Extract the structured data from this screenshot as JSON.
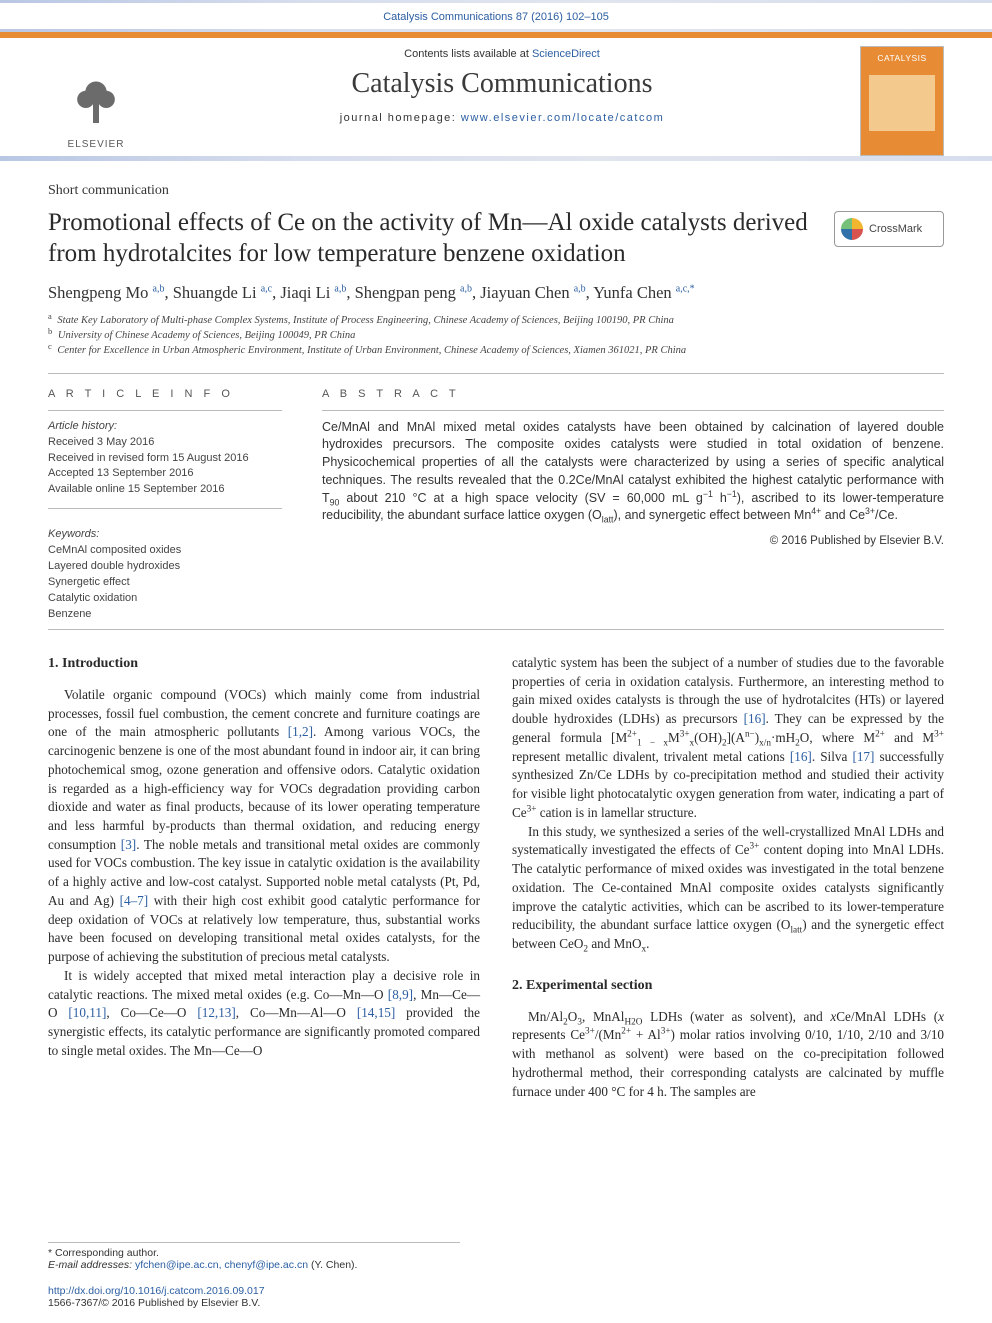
{
  "header_meta": "Catalysis Communications 87 (2016) 102–105",
  "masthead": {
    "contents_prefix": "Contents lists available at ",
    "contents_link": "ScienceDirect",
    "journal_title": "Catalysis Communications",
    "homepage_prefix": "journal homepage: ",
    "homepage_link": "www.elsevier.com/locate/catcom",
    "publisher": "ELSEVIER",
    "cover_label": "CATALYSIS"
  },
  "crossmark_label": "CrossMark",
  "article": {
    "type_label": "Short communication",
    "title": "Promotional effects of Ce on the activity of Mn—Al oxide catalysts derived from hydrotalcites for low temperature benzene oxidation",
    "authors_html": "Shengpeng Mo <sup>a,b</sup>, Shuangde Li <sup>a,c</sup>, Jiaqi Li <sup>a,b</sup>, Shengpan peng <sup>a,b</sup>, Jiayuan Chen <sup>a,b</sup>, Yunfa Chen <sup>a,c,*</sup>",
    "affiliations": [
      {
        "sup": "a",
        "text": "State Key Laboratory of Multi-phase Complex Systems, Institute of Process Engineering, Chinese Academy of Sciences, Beijing 100190, PR China"
      },
      {
        "sup": "b",
        "text": "University of Chinese Academy of Sciences, Beijing 100049, PR China"
      },
      {
        "sup": "c",
        "text": "Center for Excellence in Urban Atmospheric Environment, Institute of Urban Environment, Chinese Academy of Sciences, Xiamen 361021, PR China"
      }
    ]
  },
  "info": {
    "left_head": "A R T I C L E   I N F O",
    "right_head": "A B S T R A C T",
    "history_label": "Article history:",
    "history": [
      "Received 3 May 2016",
      "Received in revised form 15 August 2016",
      "Accepted 13 September 2016",
      "Available online 15 September 2016"
    ],
    "keywords_label": "Keywords:",
    "keywords": [
      "CeMnAl composited oxides",
      "Layered double hydroxides",
      "Synergetic effect",
      "Catalytic oxidation",
      "Benzene"
    ],
    "abstract_html": "Ce/MnAl and MnAl mixed metal oxides catalysts have been obtained by calcination of layered double hydroxides precursors. The composite oxides catalysts were studied in total oxidation of benzene. Physicochemical properties of all the catalysts were characterized by using a series of specific analytical techniques. The results revealed that the 0.2Ce/MnAl catalyst exhibited the highest catalytic performance with T<sub>90</sub> about 210 °C at a high space velocity (SV = 60,000 mL g<sup>−1</sup> h<sup>−1</sup>), ascribed to its lower-temperature reducibility, the abundant surface lattice oxygen (O<sub>latt</sub>), and synergetic effect between Mn<sup>4+</sup> and Ce<sup>3+</sup>/Ce.",
    "copyright": "© 2016 Published by Elsevier B.V."
  },
  "body": {
    "sec1_head": "1. Introduction",
    "sec2_head": "2. Experimental section",
    "col1_p1_html": "Volatile organic compound (VOCs) which mainly come from industrial processes, fossil fuel combustion, the cement concrete and furniture coatings are one of the main atmospheric pollutants <span class='ref'>[1,2]</span>. Among various VOCs, the carcinogenic benzene is one of the most abundant found in indoor air, it can bring photochemical smog, ozone generation and offensive odors. Catalytic oxidation is regarded as a high-efficiency way for VOCs degradation providing carbon dioxide and water as final products, because of its lower operating temperature and less harmful by-products than thermal oxidation, and reducing energy consumption <span class='ref'>[3]</span>. The noble metals and transitional metal oxides are commonly used for VOCs combustion. The key issue in catalytic oxidation is the availability of a highly active and low-cost catalyst. Supported noble metal catalysts (Pt, Pd, Au and Ag) <span class='ref'>[4–7]</span> with their high cost exhibit good catalytic performance for deep oxidation of VOCs at relatively low temperature, thus, substantial works have been focused on developing transitional metal oxides catalysts, for the purpose of achieving the substitution of precious metal catalysts.",
    "col1_p2_html": "It is widely accepted that mixed metal interaction play a decisive role in catalytic reactions. The mixed metal oxides (e.g. Co—Mn—O <span class='ref'>[8,9]</span>, Mn—Ce—O <span class='ref'>[10,11]</span>, Co—Ce—O <span class='ref'>[12,13]</span>, Co—Mn—Al—O <span class='ref'>[14,15]</span> provided the synergistic effects, its catalytic performance are significantly promoted compared to single metal oxides. The Mn—Ce—O",
    "col2_p1_html": "catalytic system has been the subject of a number of studies due to the favorable properties of ceria in oxidation catalysis. Furthermore, an interesting method to gain mixed oxides catalysts is through the use of hydrotalcites (HTs) or layered double hydroxides (LDHs) as precursors <span class='ref'>[16]</span>. They can be expressed by the general formula [M<sup>2+</sup><sub>1 − x</sub>M<sup>3+</sup><sub>x</sub>(OH)<sub>2</sub>](A<sup>n−</sup>)<sub>x/n</sub>·mH<sub>2</sub>O, where M<sup>2+</sup> and M<sup>3+</sup> represent metallic divalent, trivalent metal cations <span class='ref'>[16]</span>. Silva <span class='ref'>[17]</span> successfully synthesized Zn/Ce LDHs by co-precipitation method and studied their activity for visible light photocatalytic oxygen generation from water, indicating a part of Ce<sup>3+</sup> cation is in lamellar structure.",
    "col2_p2_html": "In this study, we synthesized a series of the well-crystallized MnAl LDHs and systematically investigated the effects of Ce<sup>3+</sup> content doping into MnAl LDHs. The catalytic performance of mixed oxides was investigated in the total benzene oxidation. The Ce-contained MnAl composite oxides catalysts significantly improve the catalytic activities, which can be ascribed to its lower-temperature reducibility, the abundant surface lattice oxygen (O<sub>latt</sub>) and the synergetic effect between CeO<sub>2</sub> and MnO<sub>x</sub>.",
    "col2_p3_html": "Mn/Al<sub>2</sub>O<sub>3</sub>, MnAl<sub>H2O</sub> LDHs (water as solvent), and <i>x</i>Ce/MnAl LDHs (<i>x</i> represents Ce<sup>3+</sup>/(Mn<sup>2+</sup> + Al<sup>3+</sup>) molar ratios involving 0/10, 1/10, 2/10 and 3/10 with methanol as solvent) were based on the co-precipitation followed hydrothermal method, their corresponding catalysts are calcinated by muffle furnace under 400 °C for 4 h. The samples are"
  },
  "footer": {
    "corr_label": "* Corresponding author.",
    "email_label": "E-mail addresses:",
    "emails": "yfchen@ipe.ac.cn, chenyf@ipe.ac.cn",
    "email_attrib": " (Y. Chen).",
    "doi": "http://dx.doi.org/10.1016/j.catcom.2016.09.017",
    "issn_line": "1566-7367/© 2016 Published by Elsevier B.V."
  },
  "colors": {
    "link": "#2b5ea2",
    "accent_orange": "#e78b34",
    "rule": "#bbbbbb",
    "text": "#2a2a2a"
  },
  "typography": {
    "journal_title_pt": 28,
    "article_title_pt": 25,
    "authors_pt": 16.5,
    "body_pt": 13.2,
    "small_pt": 11,
    "affil_pt": 10.5
  }
}
